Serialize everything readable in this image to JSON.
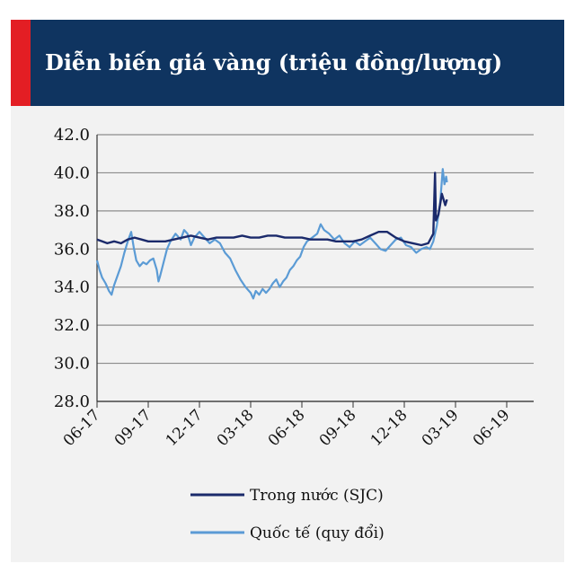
{
  "chart_data": {
    "type": "line",
    "title": "Diễn biến giá vàng (triệu đồng/lượng)",
    "xlabel": "",
    "ylabel": "",
    "ylim": [
      28.0,
      42.0
    ],
    "yticks": [
      "42.0",
      "40.0",
      "38.0",
      "36.0",
      "34.0",
      "32.0",
      "30.0",
      "28.0"
    ],
    "xticks": [
      "06-17",
      "09-17",
      "12-17",
      "03-18",
      "06-18",
      "09-18",
      "12-18",
      "03-19",
      "06-19"
    ],
    "grid": true,
    "legend_position": "bottom",
    "series": [
      {
        "name": "Trong nước (SJC)",
        "color": "#1b2a6b",
        "points": [
          [
            0.0,
            36.5
          ],
          [
            0.3,
            36.4
          ],
          [
            0.6,
            36.3
          ],
          [
            1.0,
            36.4
          ],
          [
            1.4,
            36.3
          ],
          [
            1.8,
            36.5
          ],
          [
            2.2,
            36.6
          ],
          [
            2.6,
            36.5
          ],
          [
            3.0,
            36.4
          ],
          [
            3.5,
            36.4
          ],
          [
            4.0,
            36.4
          ],
          [
            4.5,
            36.5
          ],
          [
            5.0,
            36.6
          ],
          [
            5.5,
            36.7
          ],
          [
            6.0,
            36.6
          ],
          [
            6.5,
            36.5
          ],
          [
            7.0,
            36.6
          ],
          [
            7.5,
            36.6
          ],
          [
            8.0,
            36.6
          ],
          [
            8.5,
            36.7
          ],
          [
            9.0,
            36.6
          ],
          [
            9.5,
            36.6
          ],
          [
            10.0,
            36.7
          ],
          [
            10.5,
            36.7
          ],
          [
            11.0,
            36.6
          ],
          [
            11.5,
            36.6
          ],
          [
            12.0,
            36.6
          ],
          [
            12.5,
            36.5
          ],
          [
            13.0,
            36.5
          ],
          [
            13.5,
            36.5
          ],
          [
            14.0,
            36.4
          ],
          [
            14.5,
            36.4
          ],
          [
            15.0,
            36.4
          ],
          [
            15.5,
            36.5
          ],
          [
            16.0,
            36.7
          ],
          [
            16.5,
            36.9
          ],
          [
            17.0,
            36.9
          ],
          [
            17.5,
            36.6
          ],
          [
            18.0,
            36.4
          ],
          [
            18.5,
            36.3
          ],
          [
            19.0,
            36.2
          ],
          [
            19.4,
            36.3
          ],
          [
            19.7,
            36.8
          ],
          [
            19.8,
            40.0
          ],
          [
            19.85,
            37.5
          ],
          [
            20.0,
            37.8
          ],
          [
            20.2,
            38.9
          ],
          [
            20.3,
            38.6
          ],
          [
            20.4,
            38.3
          ],
          [
            20.5,
            38.6
          ]
        ]
      },
      {
        "name": "Quốc tế (quy đổi)",
        "color": "#5b9bd5",
        "points": [
          [
            0.0,
            35.4
          ],
          [
            0.15,
            34.9
          ],
          [
            0.3,
            34.5
          ],
          [
            0.5,
            34.2
          ],
          [
            0.7,
            33.8
          ],
          [
            0.85,
            33.6
          ],
          [
            1.0,
            34.1
          ],
          [
            1.2,
            34.6
          ],
          [
            1.4,
            35.1
          ],
          [
            1.6,
            35.8
          ],
          [
            1.8,
            36.4
          ],
          [
            2.0,
            36.9
          ],
          [
            2.15,
            36.1
          ],
          [
            2.3,
            35.4
          ],
          [
            2.5,
            35.1
          ],
          [
            2.7,
            35.3
          ],
          [
            2.9,
            35.2
          ],
          [
            3.1,
            35.4
          ],
          [
            3.3,
            35.5
          ],
          [
            3.5,
            34.9
          ],
          [
            3.6,
            34.3
          ],
          [
            3.7,
            34.6
          ],
          [
            3.9,
            35.3
          ],
          [
            4.1,
            36.0
          ],
          [
            4.3,
            36.4
          ],
          [
            4.6,
            36.8
          ],
          [
            4.9,
            36.5
          ],
          [
            5.1,
            37.0
          ],
          [
            5.3,
            36.8
          ],
          [
            5.5,
            36.2
          ],
          [
            5.7,
            36.6
          ],
          [
            6.0,
            36.9
          ],
          [
            6.3,
            36.6
          ],
          [
            6.6,
            36.3
          ],
          [
            6.9,
            36.5
          ],
          [
            7.2,
            36.3
          ],
          [
            7.5,
            35.8
          ],
          [
            7.8,
            35.5
          ],
          [
            8.1,
            34.9
          ],
          [
            8.4,
            34.4
          ],
          [
            8.7,
            34.0
          ],
          [
            9.0,
            33.7
          ],
          [
            9.15,
            33.4
          ],
          [
            9.3,
            33.8
          ],
          [
            9.5,
            33.6
          ],
          [
            9.7,
            33.9
          ],
          [
            9.9,
            33.7
          ],
          [
            10.1,
            33.9
          ],
          [
            10.3,
            34.2
          ],
          [
            10.5,
            34.4
          ],
          [
            10.7,
            34.0
          ],
          [
            10.9,
            34.3
          ],
          [
            11.1,
            34.5
          ],
          [
            11.3,
            34.9
          ],
          [
            11.5,
            35.1
          ],
          [
            11.7,
            35.4
          ],
          [
            11.9,
            35.6
          ],
          [
            12.1,
            36.1
          ],
          [
            12.3,
            36.4
          ],
          [
            12.6,
            36.6
          ],
          [
            12.9,
            36.8
          ],
          [
            13.1,
            37.3
          ],
          [
            13.3,
            37.0
          ],
          [
            13.6,
            36.8
          ],
          [
            13.9,
            36.5
          ],
          [
            14.2,
            36.7
          ],
          [
            14.5,
            36.3
          ],
          [
            14.8,
            36.1
          ],
          [
            15.1,
            36.4
          ],
          [
            15.4,
            36.2
          ],
          [
            15.7,
            36.4
          ],
          [
            16.0,
            36.6
          ],
          [
            16.3,
            36.3
          ],
          [
            16.6,
            36.0
          ],
          [
            16.9,
            35.9
          ],
          [
            17.2,
            36.2
          ],
          [
            17.5,
            36.5
          ],
          [
            17.8,
            36.6
          ],
          [
            18.1,
            36.2
          ],
          [
            18.4,
            36.1
          ],
          [
            18.7,
            35.8
          ],
          [
            19.0,
            36.0
          ],
          [
            19.3,
            36.1
          ],
          [
            19.5,
            36.0
          ],
          [
            19.7,
            36.4
          ],
          [
            19.9,
            37.2
          ],
          [
            20.1,
            38.4
          ],
          [
            20.25,
            40.2
          ],
          [
            20.35,
            39.4
          ],
          [
            20.45,
            39.8
          ],
          [
            20.5,
            39.5
          ]
        ]
      }
    ]
  }
}
